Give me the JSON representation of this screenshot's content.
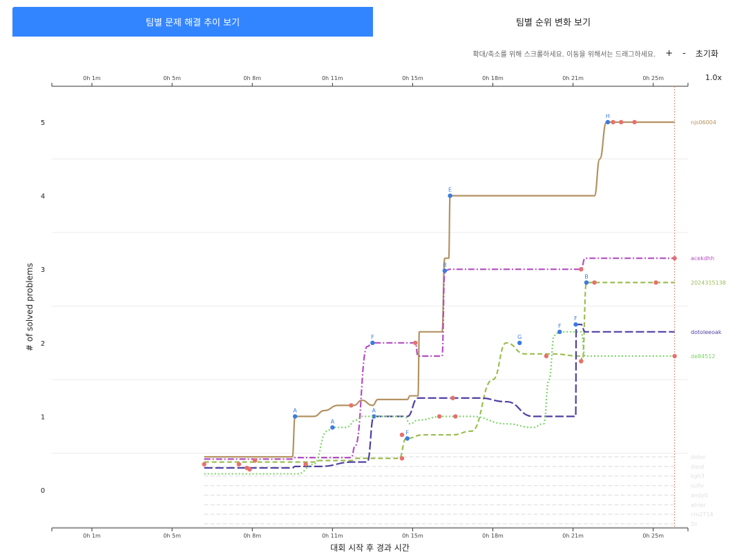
{
  "tabs": [
    {
      "label": "팀별 문제 해결 추이 보기",
      "active": true
    },
    {
      "label": "팀별 순위 변화 보기",
      "active": false
    }
  ],
  "toolbar": {
    "hint": "확대/축소를 위해 스크롤하세요. 이동을 위해서는 드래그하세요.",
    "zoom_in": "+",
    "zoom_out": "-",
    "reset": "초기화",
    "zoom_level": "1.0x"
  },
  "chart_data": {
    "type": "line",
    "xlabel": "대회 시작 후 경과 시간",
    "ylabel": "# of solved problems",
    "x_ticks": [
      {
        "t": 1,
        "label": "0h 1m"
      },
      {
        "t": 4,
        "label": "0h 5m"
      },
      {
        "t": 7,
        "label": "0h 8m"
      },
      {
        "t": 10,
        "label": "0h 11m"
      },
      {
        "t": 13,
        "label": "0h 15m"
      },
      {
        "t": 16,
        "label": "0h 18m"
      },
      {
        "t": 19,
        "label": "0h 21m"
      },
      {
        "t": 22,
        "label": "0h 25m"
      }
    ],
    "xlim": [
      -0.5,
      23.3
    ],
    "ylim": [
      -0.5,
      5.5
    ],
    "y_ticks": [
      0,
      1,
      2,
      3,
      4,
      5
    ],
    "grid": true,
    "series": [
      {
        "name": "njs06004",
        "color": "#b39262",
        "dash": "solid",
        "points": [
          [
            5.2,
            0.45
          ],
          [
            8.5,
            0.45
          ],
          [
            8.6,
            1.0
          ],
          [
            9.3,
            1.0
          ],
          [
            9.7,
            1.08
          ],
          [
            10.2,
            1.15
          ],
          [
            10.8,
            1.15
          ],
          [
            11.1,
            1.22
          ],
          [
            11.5,
            1.15
          ],
          [
            11.7,
            1.23
          ],
          [
            12.8,
            1.23
          ],
          [
            12.9,
            1.28
          ],
          [
            13.2,
            1.28
          ],
          [
            13.25,
            2.15
          ],
          [
            14.1,
            2.15
          ],
          [
            14.2,
            3.15
          ],
          [
            14.35,
            3.15
          ],
          [
            14.4,
            4.0
          ],
          [
            19.8,
            4.0
          ],
          [
            20.0,
            4.5
          ],
          [
            20.25,
            5.0
          ],
          [
            22.8,
            5.0
          ]
        ],
        "markers_solved": [
          [
            8.6,
            1.0,
            "A"
          ],
          [
            14.4,
            4.0,
            "E"
          ],
          [
            20.3,
            5.0,
            "H"
          ]
        ],
        "markers_wrong": [
          [
            10.7,
            1.15
          ],
          [
            20.5,
            5.0
          ],
          [
            20.8,
            5.0
          ],
          [
            21.3,
            5.0
          ]
        ]
      },
      {
        "name": "acekdhh",
        "color": "#b44cc2",
        "dash": "dashdot",
        "points": [
          [
            5.2,
            0.42
          ],
          [
            8.5,
            0.42
          ],
          [
            8.6,
            0.44
          ],
          [
            10.7,
            0.44
          ],
          [
            10.85,
            0.6
          ],
          [
            11.3,
            1.95
          ],
          [
            11.5,
            2.0
          ],
          [
            13.1,
            2.0
          ],
          [
            13.2,
            1.82
          ],
          [
            14.1,
            1.82
          ],
          [
            14.2,
            2.98
          ],
          [
            14.4,
            3.0
          ],
          [
            19.3,
            3.0
          ],
          [
            19.45,
            3.15
          ],
          [
            22.8,
            3.15
          ]
        ],
        "markers_solved": [
          [
            11.5,
            2.0,
            "F"
          ],
          [
            14.2,
            2.98,
            "B"
          ]
        ],
        "markers_wrong": [
          [
            13.1,
            2.0
          ],
          [
            19.3,
            3.0
          ],
          [
            22.8,
            3.15
          ]
        ]
      },
      {
        "name": "2024315138",
        "color": "#9bbd50",
        "dash": "dashed",
        "points": [
          [
            5.2,
            0.38
          ],
          [
            9.3,
            0.38
          ],
          [
            9.5,
            0.4
          ],
          [
            10.7,
            0.4
          ],
          [
            10.9,
            0.43
          ],
          [
            12.5,
            0.43
          ],
          [
            12.75,
            0.7
          ],
          [
            13.4,
            0.75
          ],
          [
            14.5,
            0.75
          ],
          [
            15.2,
            0.8
          ],
          [
            16.0,
            1.5
          ],
          [
            16.5,
            2.0
          ],
          [
            17.2,
            1.85
          ],
          [
            18.2,
            1.85
          ],
          [
            19.3,
            1.82
          ],
          [
            19.35,
            1.75
          ],
          [
            19.5,
            2.82
          ],
          [
            22.8,
            2.82
          ]
        ],
        "markers_solved": [
          [
            12.8,
            0.7,
            "F"
          ],
          [
            17.0,
            2.0,
            "G"
          ],
          [
            19.5,
            2.82,
            "B"
          ]
        ],
        "markers_wrong": [
          [
            12.6,
            0.43
          ],
          [
            18.0,
            1.82
          ],
          [
            19.3,
            1.75
          ],
          [
            19.8,
            2.82
          ],
          [
            22.1,
            2.82
          ]
        ]
      },
      {
        "name": "dotoleeoak",
        "color": "#4e3fa3",
        "dash": "longdash",
        "points": [
          [
            5.2,
            0.3
          ],
          [
            8.5,
            0.3
          ],
          [
            8.6,
            0.32
          ],
          [
            9.5,
            0.32
          ],
          [
            10.8,
            0.38
          ],
          [
            11.3,
            0.38
          ],
          [
            11.55,
            1.0
          ],
          [
            12.8,
            1.0
          ],
          [
            13.2,
            1.25
          ],
          [
            15.5,
            1.25
          ],
          [
            16.5,
            1.2
          ],
          [
            17.5,
            1.0
          ],
          [
            18.8,
            1.0
          ],
          [
            19.1,
            1.0
          ],
          [
            19.12,
            2.25
          ],
          [
            19.3,
            2.25
          ],
          [
            19.45,
            2.15
          ],
          [
            22.8,
            2.15
          ]
        ],
        "markers_solved": [
          [
            11.55,
            1.0,
            "A"
          ],
          [
            19.1,
            2.25,
            "F"
          ]
        ],
        "markers_wrong": [
          [
            14.5,
            1.25
          ]
        ]
      },
      {
        "name": "de84512",
        "color": "#79d465",
        "dash": "dotted",
        "points": [
          [
            5.2,
            0.22
          ],
          [
            8.7,
            0.22
          ],
          [
            9.3,
            0.35
          ],
          [
            9.8,
            0.8
          ],
          [
            10.0,
            0.85
          ],
          [
            10.5,
            0.85
          ],
          [
            10.9,
            0.95
          ],
          [
            11.1,
            1.0
          ],
          [
            12.7,
            1.0
          ],
          [
            12.9,
            0.9
          ],
          [
            13.2,
            0.95
          ],
          [
            14.1,
            1.0
          ],
          [
            14.7,
            1.0
          ],
          [
            15.2,
            1.0
          ],
          [
            16.5,
            0.9
          ],
          [
            17.5,
            0.85
          ],
          [
            17.9,
            0.9
          ],
          [
            18.1,
            1.5
          ],
          [
            18.3,
            2.1
          ],
          [
            18.5,
            2.15
          ],
          [
            19.3,
            2.15
          ],
          [
            19.45,
            1.82
          ],
          [
            22.8,
            1.82
          ]
        ],
        "markers_solved": [
          [
            10.0,
            0.85,
            "A"
          ],
          [
            18.5,
            2.15,
            "F"
          ]
        ],
        "markers_wrong": [
          [
            6.8,
            0.3
          ],
          [
            7.1,
            0.4
          ],
          [
            5.2,
            0.35
          ],
          [
            6.5,
            0.35
          ],
          [
            6.9,
            0.28
          ],
          [
            9.0,
            0.35
          ],
          [
            12.6,
            0.75
          ],
          [
            14.0,
            1.0
          ],
          [
            14.6,
            1.0
          ],
          [
            22.8,
            1.82
          ]
        ]
      }
    ],
    "faded_series_names": [
      "dotor",
      "dasd",
      "kgh3",
      "suflv",
      "andy0",
      "atrier",
      "cm2714",
      "2s"
    ]
  }
}
